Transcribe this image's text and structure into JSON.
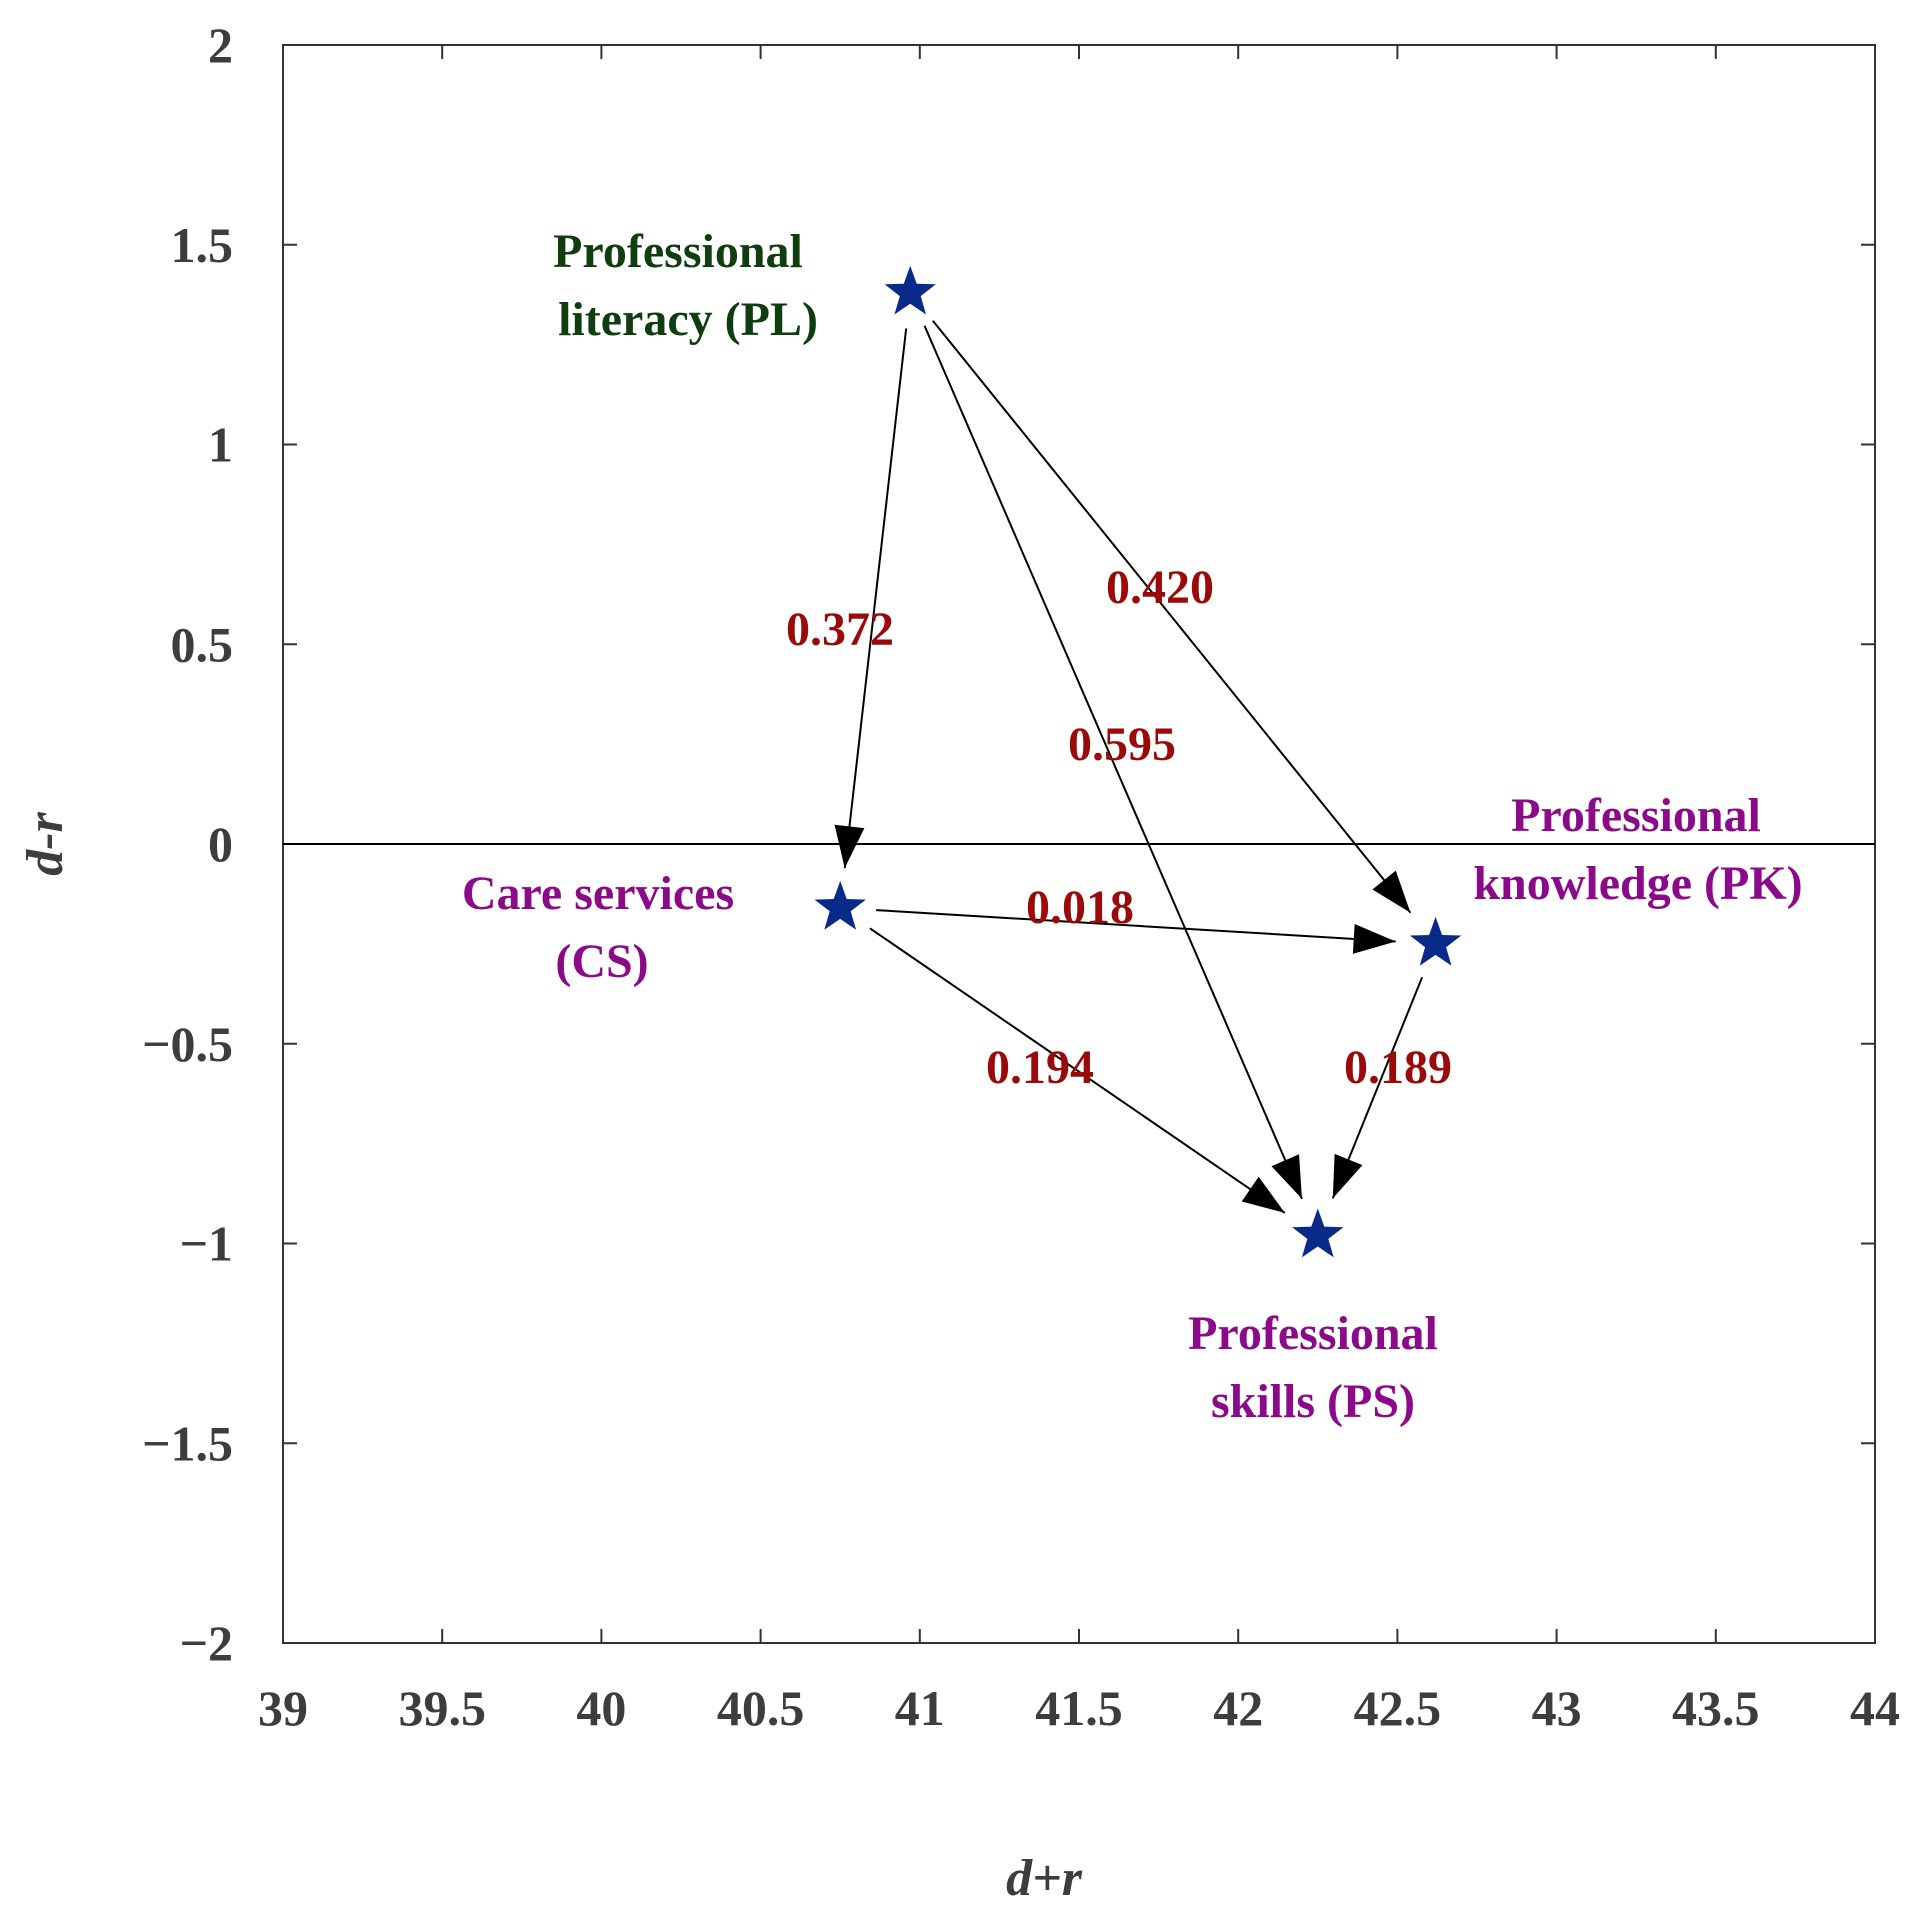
{
  "chart_data": {
    "type": "scatter",
    "title": "",
    "xlabel": "d+r",
    "ylabel": "d-r",
    "xlim": [
      39,
      44
    ],
    "ylim": [
      -2,
      2
    ],
    "x_ticks": [
      39,
      39.5,
      40,
      40.5,
      41,
      41.5,
      42,
      42.5,
      43,
      43.5,
      44
    ],
    "x_tick_labels": [
      "39",
      "39.5",
      "40",
      "40.5",
      "41",
      "41.5",
      "42",
      "42.5",
      "43",
      "43.5",
      "44"
    ],
    "y_ticks": [
      2,
      1.5,
      1,
      0.5,
      0,
      -0.5,
      -1,
      -1.5,
      -2
    ],
    "y_tick_labels": [
      "2",
      "1.5",
      "1",
      "0.5",
      "0",
      "−0.5",
      "−1",
      "−1.5",
      "−2"
    ],
    "zero_line": 0,
    "marker": "star",
    "colors": {
      "marker": "#0a2a8a",
      "edge_label": "#9a0a0a",
      "label_pl": "#0f3d0f",
      "label_other": "#8a0a8a",
      "arrow": "#000000",
      "axis_text": "#3d3d3d"
    },
    "points": [
      {
        "id": "PL",
        "lines": [
          "Professional",
          "literacy (PL)"
        ],
        "x": 40.97,
        "y": 1.38,
        "color_key": "label_pl"
      },
      {
        "id": "CS",
        "lines": [
          "Care services",
          "(CS)"
        ],
        "x": 40.75,
        "y": -0.16,
        "color_key": "label_other"
      },
      {
        "id": "PK",
        "lines": [
          "Professional",
          "knowledge (PK)"
        ],
        "x": 42.62,
        "y": -0.25,
        "color_key": "label_other"
      },
      {
        "id": "PS",
        "lines": [
          "Professional",
          "skills (PS)"
        ],
        "x": 42.25,
        "y": -0.98,
        "color_key": "label_other"
      }
    ],
    "edges": [
      {
        "from": "PL",
        "to": "CS",
        "value": "0.372"
      },
      {
        "from": "PL",
        "to": "PS",
        "value": "0.595"
      },
      {
        "from": "PL",
        "to": "PK",
        "value": "0.420"
      },
      {
        "from": "CS",
        "to": "PK",
        "value": "0.018"
      },
      {
        "from": "CS",
        "to": "PS",
        "value": "0.194"
      },
      {
        "from": "PK",
        "to": "PS",
        "value": "0.189"
      }
    ]
  }
}
